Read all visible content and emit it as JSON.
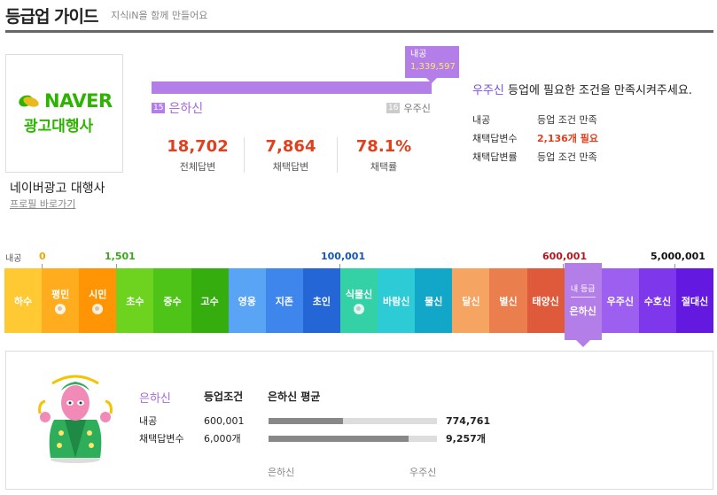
{
  "header": {
    "title": "등급업 가이드",
    "subtitle": "지식iN을 함께 만들어요"
  },
  "profile": {
    "logo_word": "NAVER",
    "logo_sub": "광고대행사",
    "name": "네이버광고 대행사",
    "link_label": "프로필 바로가기"
  },
  "progress": {
    "tip_label": "내공",
    "tip_value": "1,339,597",
    "fill_fraction": 1.0,
    "current_num": "15",
    "current_name": "은하신",
    "next_num": "16",
    "next_name": "우주신"
  },
  "stats": [
    {
      "value": "18,702",
      "label": "전체답변"
    },
    {
      "value": "7,864",
      "label": "채택답변"
    },
    {
      "value": "78.1%",
      "label": "채택률"
    }
  ],
  "condition": {
    "title_highlight": "우주신",
    "title_rest": " 등업에 필요한 조건을 만족시켜주세요.",
    "rows": [
      {
        "key": "내공",
        "value": "등업 조건 만족"
      },
      {
        "key": "채택답변수",
        "value": "2,136개 필요"
      },
      {
        "key": "채택답변률",
        "value": "등업 조건 만족"
      }
    ]
  },
  "thresholds": {
    "label": "내공",
    "values": [
      "0",
      "1,501",
      "100,001",
      "600,001",
      "5,000,001"
    ]
  },
  "grades": [
    {
      "name": "하수",
      "color": "#ffc933",
      "badge": false
    },
    {
      "name": "평민",
      "color": "#ffad1f",
      "badge": true
    },
    {
      "name": "시민",
      "color": "#ff9505",
      "badge": true
    },
    {
      "name": "초수",
      "color": "#6ed31f",
      "badge": false
    },
    {
      "name": "중수",
      "color": "#4fc418",
      "badge": false
    },
    {
      "name": "고수",
      "color": "#36ad0e",
      "badge": false
    },
    {
      "name": "영웅",
      "color": "#5aa4f5",
      "badge": false
    },
    {
      "name": "지존",
      "color": "#3e86ec",
      "badge": false
    },
    {
      "name": "초인",
      "color": "#2466d6",
      "badge": false
    },
    {
      "name": "식물신",
      "color": "#35d1a6",
      "badge": true
    },
    {
      "name": "바람신",
      "color": "#2dcbd6",
      "badge": false
    },
    {
      "name": "물신",
      "color": "#12a7c9",
      "badge": false
    },
    {
      "name": "달신",
      "color": "#f5a461",
      "badge": false
    },
    {
      "name": "별신",
      "color": "#ea7f4d",
      "badge": false
    },
    {
      "name": "태양신",
      "color": "#df5a3a",
      "badge": false
    },
    {
      "name": "은하신",
      "color": "#b47ee8",
      "badge": false,
      "current": true,
      "mine_label": "내 등급"
    },
    {
      "name": "우주신",
      "color": "#9c5ff0",
      "badge": false
    },
    {
      "name": "수호신",
      "color": "#7f37ec",
      "badge": false
    },
    {
      "name": "절대신",
      "color": "#6419e0",
      "badge": false
    }
  ],
  "detail": {
    "grade_name": "은하신",
    "col_condition": "등업조건",
    "col_average": "은하신 평균",
    "rows": [
      {
        "key": "내공",
        "condition": "600,001",
        "average": "774,761",
        "fraction": 0.44
      },
      {
        "key": "채택답변수",
        "condition": "6,000개",
        "average": "9,257개",
        "fraction": 0.83
      }
    ],
    "foot_left": "은하신",
    "foot_right": "우주신"
  }
}
